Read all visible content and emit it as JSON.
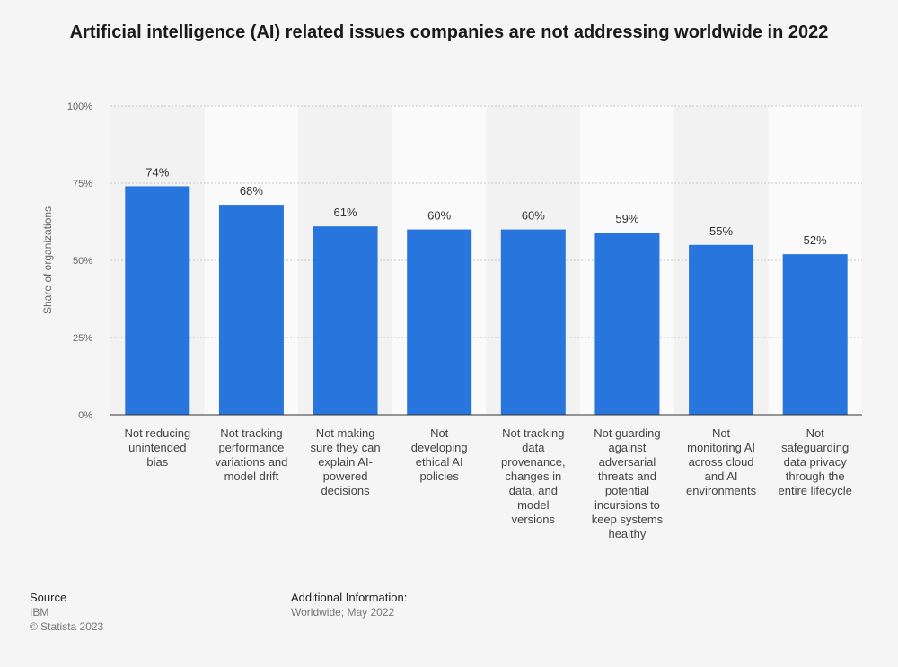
{
  "chart_data": {
    "type": "bar",
    "title": "Artificial intelligence (AI) related issues companies are not addressing worldwide in 2022",
    "xlabel": "",
    "ylabel": "Share of organizations",
    "ylim": [
      0,
      100
    ],
    "yticks": [
      0,
      25,
      50,
      75,
      100
    ],
    "ytick_labels": [
      "0%",
      "25%",
      "50%",
      "75%",
      "100%"
    ],
    "categories": [
      [
        "Not reducing",
        "unintended",
        "bias"
      ],
      [
        "Not tracking",
        "performance",
        "variations and",
        "model drift"
      ],
      [
        "Not making",
        "sure they can",
        "explain AI-",
        "powered",
        "decisions"
      ],
      [
        "Not",
        "developing",
        "ethical AI",
        "policies"
      ],
      [
        "Not tracking",
        "data",
        "provenance,",
        "changes in",
        "data, and",
        "model",
        "versions"
      ],
      [
        "Not guarding",
        "against",
        "adversarial",
        "threats and",
        "potential",
        "incursions to",
        "keep systems",
        "healthy"
      ],
      [
        "Not",
        "monitoring AI",
        "across cloud",
        "and AI",
        "environments"
      ],
      [
        "Not",
        "safeguarding",
        "data privacy",
        "through the",
        "entire lifecycle"
      ]
    ],
    "values": [
      74,
      68,
      61,
      60,
      60,
      59,
      55,
      52
    ],
    "value_labels": [
      "74%",
      "68%",
      "61%",
      "60%",
      "60%",
      "59%",
      "55%",
      "52%"
    ],
    "grid": true,
    "bar_color": "#2876dd"
  },
  "footer": {
    "source_heading": "Source",
    "source_name": "IBM",
    "copyright": "© Statista 2023",
    "additional_heading": "Additional Information:",
    "additional_text": "Worldwide; May 2022"
  }
}
